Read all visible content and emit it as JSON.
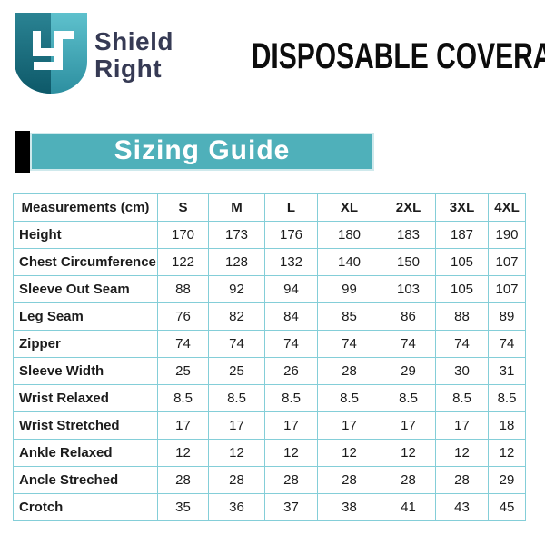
{
  "brand": {
    "name_line1": "Shield",
    "name_line2": "Right",
    "logo_icon": "shield-monogram-icon"
  },
  "header": {
    "page_title": "DISPOSABLE COVERALLS"
  },
  "banner": {
    "section_title": "Sizing Guide"
  },
  "colors": {
    "banner_teal": "#4fb0ba",
    "banner_accent_black": "#000000",
    "table_border": "#84ced8",
    "brand_text_navy": "#363a54",
    "shield_dark_teal": "#15616f",
    "shield_light_teal": "#52bac8",
    "title_black": "#0c0c0c",
    "text_white": "#ffffff"
  },
  "table": {
    "header": [
      "Measurements (cm)",
      "S",
      "M",
      "L",
      "XL",
      "2XL",
      "3XL",
      "4XL"
    ],
    "rows": [
      {
        "label": "Height",
        "values": [
          "170",
          "173",
          "176",
          "180",
          "183",
          "187",
          "190"
        ]
      },
      {
        "label": "Chest Circumference",
        "values": [
          "122",
          "128",
          "132",
          "140",
          "150",
          "105",
          "107"
        ]
      },
      {
        "label": "Sleeve Out Seam",
        "values": [
          "88",
          "92",
          "94",
          "99",
          "103",
          "105",
          "107"
        ]
      },
      {
        "label": "Leg Seam",
        "values": [
          "76",
          "82",
          "84",
          "85",
          "86",
          "88",
          "89"
        ]
      },
      {
        "label": "Zipper",
        "values": [
          "74",
          "74",
          "74",
          "74",
          "74",
          "74",
          "74"
        ]
      },
      {
        "label": "Sleeve Width",
        "values": [
          "25",
          "25",
          "26",
          "28",
          "29",
          "30",
          "31"
        ]
      },
      {
        "label": "Wrist Relaxed",
        "values": [
          "8.5",
          "8.5",
          "8.5",
          "8.5",
          "8.5",
          "8.5",
          "8.5"
        ]
      },
      {
        "label": "Wrist Stretched",
        "values": [
          "17",
          "17",
          "17",
          "17",
          "17",
          "17",
          "18"
        ]
      },
      {
        "label": "Ankle Relaxed",
        "values": [
          "12",
          "12",
          "12",
          "12",
          "12",
          "12",
          "12"
        ]
      },
      {
        "label": "Ancle Streched",
        "values": [
          "28",
          "28",
          "28",
          "28",
          "28",
          "28",
          "29"
        ]
      },
      {
        "label": "Crotch",
        "values": [
          "35",
          "36",
          "37",
          "38",
          "41",
          "43",
          "45"
        ]
      }
    ]
  }
}
